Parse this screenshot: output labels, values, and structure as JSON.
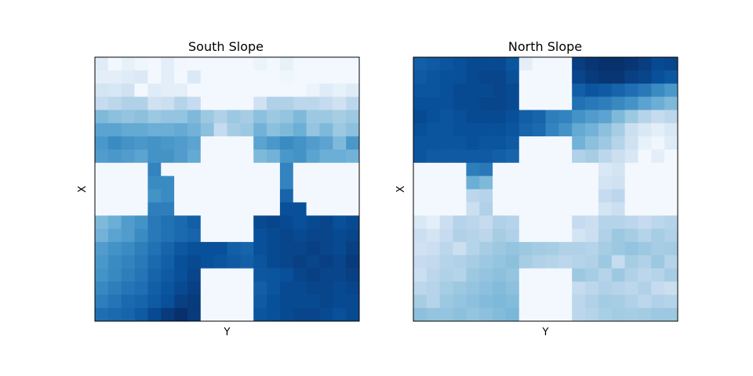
{
  "chart_data": [
    {
      "type": "heatmap",
      "title": "South Slope",
      "xlabel": "Y",
      "ylabel": "X",
      "colormap": "Blues",
      "value_range": [
        0,
        1
      ],
      "grid": false,
      "ticks": false,
      "values": [
        [
          0.12,
          0.02,
          0.08,
          0.04,
          0.02,
          0.1,
          0.03,
          0.02,
          0.02,
          0.02,
          0.02,
          0.02,
          0.06,
          0.02,
          0.08,
          0.02,
          0.02,
          0.02,
          0.02,
          0.02
        ],
        [
          0.1,
          0.1,
          0.12,
          0.14,
          0.02,
          0.1,
          0.02,
          0.14,
          0.02,
          0.02,
          0.02,
          0.02,
          0.02,
          0.02,
          0.04,
          0.02,
          0.02,
          0.02,
          0.02,
          0.02
        ],
        [
          0.18,
          0.16,
          0.2,
          0.02,
          0.12,
          0.1,
          0.1,
          0.02,
          0.02,
          0.02,
          0.02,
          0.02,
          0.02,
          0.02,
          0.02,
          0.02,
          0.06,
          0.12,
          0.08,
          0.12
        ],
        [
          0.25,
          0.28,
          0.32,
          0.32,
          0.2,
          0.22,
          0.3,
          0.25,
          0.02,
          0.02,
          0.02,
          0.02,
          0.2,
          0.32,
          0.32,
          0.28,
          0.28,
          0.25,
          0.2,
          0.28
        ],
        [
          0.45,
          0.42,
          0.4,
          0.42,
          0.38,
          0.4,
          0.4,
          0.45,
          0.38,
          0.32,
          0.38,
          0.35,
          0.42,
          0.38,
          0.4,
          0.45,
          0.38,
          0.38,
          0.35,
          0.38
        ],
        [
          0.55,
          0.55,
          0.52,
          0.52,
          0.5,
          0.5,
          0.52,
          0.48,
          0.42,
          0.25,
          0.35,
          0.38,
          0.48,
          0.42,
          0.45,
          0.5,
          0.4,
          0.45,
          0.38,
          0.42
        ],
        [
          0.6,
          0.65,
          0.62,
          0.6,
          0.62,
          0.6,
          0.58,
          0.55,
          0.02,
          0.02,
          0.02,
          0.02,
          0.55,
          0.6,
          0.65,
          0.62,
          0.58,
          0.55,
          0.45,
          0.6
        ],
        [
          0.58,
          0.6,
          0.58,
          0.55,
          0.62,
          0.62,
          0.58,
          0.52,
          0.02,
          0.02,
          0.02,
          0.02,
          0.45,
          0.48,
          0.6,
          0.62,
          0.55,
          0.5,
          0.5,
          0.48
        ],
        [
          0.02,
          0.02,
          0.02,
          0.02,
          0.68,
          0.02,
          0.02,
          0.02,
          0.02,
          0.02,
          0.02,
          0.02,
          0.02,
          0.02,
          0.68,
          0.02,
          0.02,
          0.02,
          0.02,
          0.02
        ],
        [
          0.02,
          0.02,
          0.02,
          0.02,
          0.65,
          0.65,
          0.02,
          0.02,
          0.02,
          0.02,
          0.02,
          0.02,
          0.02,
          0.02,
          0.68,
          0.02,
          0.02,
          0.02,
          0.02,
          0.02
        ],
        [
          0.02,
          0.02,
          0.02,
          0.02,
          0.62,
          0.65,
          0.02,
          0.02,
          0.02,
          0.02,
          0.02,
          0.02,
          0.02,
          0.02,
          0.8,
          0.02,
          0.02,
          0.02,
          0.02,
          0.02
        ],
        [
          0.02,
          0.02,
          0.02,
          0.02,
          0.7,
          0.7,
          0.02,
          0.02,
          0.02,
          0.02,
          0.02,
          0.02,
          0.02,
          0.02,
          0.88,
          0.88,
          0.02,
          0.02,
          0.02,
          0.02
        ],
        [
          0.45,
          0.5,
          0.58,
          0.62,
          0.72,
          0.75,
          0.78,
          0.82,
          0.02,
          0.02,
          0.02,
          0.02,
          0.9,
          0.92,
          0.9,
          0.88,
          0.9,
          0.92,
          0.88,
          0.9
        ],
        [
          0.48,
          0.55,
          0.58,
          0.65,
          0.72,
          0.75,
          0.78,
          0.8,
          0.02,
          0.02,
          0.02,
          0.02,
          0.88,
          0.9,
          0.92,
          0.9,
          0.92,
          0.92,
          0.9,
          0.92
        ],
        [
          0.58,
          0.62,
          0.65,
          0.7,
          0.75,
          0.8,
          0.85,
          0.88,
          0.88,
          0.88,
          0.82,
          0.8,
          0.88,
          0.9,
          0.92,
          0.92,
          0.94,
          0.92,
          0.9,
          0.94
        ],
        [
          0.6,
          0.65,
          0.68,
          0.72,
          0.78,
          0.82,
          0.88,
          0.9,
          0.88,
          0.86,
          0.84,
          0.82,
          0.86,
          0.9,
          0.92,
          0.94,
          0.92,
          0.94,
          0.92,
          0.96
        ],
        [
          0.62,
          0.66,
          0.7,
          0.74,
          0.8,
          0.84,
          0.88,
          0.92,
          0.02,
          0.02,
          0.02,
          0.02,
          0.85,
          0.86,
          0.88,
          0.92,
          0.94,
          0.92,
          0.92,
          0.94
        ],
        [
          0.66,
          0.7,
          0.74,
          0.76,
          0.82,
          0.86,
          0.9,
          0.94,
          0.02,
          0.02,
          0.02,
          0.02,
          0.82,
          0.86,
          0.9,
          0.9,
          0.92,
          0.92,
          0.9,
          0.92
        ],
        [
          0.7,
          0.74,
          0.78,
          0.8,
          0.84,
          0.88,
          0.94,
          0.96,
          0.02,
          0.02,
          0.02,
          0.02,
          0.84,
          0.88,
          0.9,
          0.9,
          0.9,
          0.92,
          0.9,
          0.9
        ],
        [
          0.76,
          0.78,
          0.8,
          0.84,
          0.9,
          0.96,
          1.0,
          0.96,
          0.02,
          0.02,
          0.02,
          0.02,
          0.86,
          0.88,
          0.9,
          0.92,
          0.92,
          0.9,
          0.88,
          0.9
        ]
      ]
    },
    {
      "type": "heatmap",
      "title": "North Slope",
      "xlabel": "Y",
      "ylabel": "X",
      "colormap": "Blues",
      "value_range": [
        0,
        1
      ],
      "grid": false,
      "ticks": false,
      "values": [
        [
          0.82,
          0.84,
          0.86,
          0.88,
          0.9,
          0.9,
          0.9,
          0.86,
          0.1,
          0.02,
          0.02,
          0.02,
          0.95,
          0.98,
          1.0,
          1.0,
          0.98,
          0.95,
          0.9,
          0.92
        ],
        [
          0.84,
          0.86,
          0.88,
          0.88,
          0.9,
          0.92,
          0.92,
          0.88,
          0.02,
          0.02,
          0.02,
          0.02,
          0.92,
          0.96,
          0.98,
          0.98,
          0.94,
          0.92,
          0.88,
          0.85
        ],
        [
          0.86,
          0.86,
          0.88,
          0.9,
          0.9,
          0.9,
          0.92,
          0.9,
          0.02,
          0.02,
          0.02,
          0.02,
          0.82,
          0.86,
          0.84,
          0.8,
          0.76,
          0.72,
          0.65,
          0.6
        ],
        [
          0.88,
          0.88,
          0.88,
          0.9,
          0.9,
          0.92,
          0.92,
          0.9,
          0.02,
          0.02,
          0.02,
          0.02,
          0.75,
          0.72,
          0.7,
          0.66,
          0.62,
          0.55,
          0.5,
          0.45
        ],
        [
          0.9,
          0.88,
          0.86,
          0.88,
          0.9,
          0.9,
          0.9,
          0.88,
          0.82,
          0.8,
          0.7,
          0.68,
          0.62,
          0.58,
          0.55,
          0.45,
          0.38,
          0.3,
          0.25,
          0.28
        ],
        [
          0.88,
          0.86,
          0.86,
          0.88,
          0.88,
          0.88,
          0.88,
          0.86,
          0.8,
          0.78,
          0.68,
          0.62,
          0.52,
          0.48,
          0.42,
          0.35,
          0.22,
          0.15,
          0.1,
          0.15
        ],
        [
          0.86,
          0.86,
          0.86,
          0.86,
          0.88,
          0.86,
          0.86,
          0.84,
          0.02,
          0.02,
          0.02,
          0.02,
          0.48,
          0.42,
          0.38,
          0.3,
          0.2,
          0.08,
          0.04,
          0.12
        ],
        [
          0.86,
          0.84,
          0.84,
          0.84,
          0.84,
          0.84,
          0.82,
          0.8,
          0.02,
          0.02,
          0.02,
          0.02,
          0.32,
          0.35,
          0.28,
          0.22,
          0.16,
          0.02,
          0.1,
          0.02
        ],
        [
          0.02,
          0.02,
          0.02,
          0.02,
          0.7,
          0.72,
          0.02,
          0.02,
          0.02,
          0.02,
          0.02,
          0.02,
          0.02,
          0.02,
          0.15,
          0.18,
          0.02,
          0.02,
          0.02,
          0.02
        ],
        [
          0.02,
          0.02,
          0.02,
          0.02,
          0.5,
          0.45,
          0.02,
          0.02,
          0.02,
          0.02,
          0.02,
          0.02,
          0.02,
          0.02,
          0.18,
          0.2,
          0.02,
          0.02,
          0.02,
          0.02
        ],
        [
          0.02,
          0.02,
          0.02,
          0.02,
          0.28,
          0.3,
          0.02,
          0.02,
          0.02,
          0.02,
          0.02,
          0.02,
          0.02,
          0.02,
          0.25,
          0.28,
          0.02,
          0.02,
          0.02,
          0.02
        ],
        [
          0.02,
          0.02,
          0.02,
          0.02,
          0.22,
          0.32,
          0.02,
          0.02,
          0.02,
          0.02,
          0.02,
          0.02,
          0.02,
          0.02,
          0.18,
          0.22,
          0.02,
          0.02,
          0.02,
          0.02
        ],
        [
          0.15,
          0.1,
          0.22,
          0.3,
          0.28,
          0.25,
          0.32,
          0.3,
          0.02,
          0.02,
          0.02,
          0.02,
          0.25,
          0.22,
          0.3,
          0.3,
          0.28,
          0.25,
          0.28,
          0.3
        ],
        [
          0.22,
          0.18,
          0.25,
          0.32,
          0.3,
          0.28,
          0.35,
          0.32,
          0.02,
          0.02,
          0.02,
          0.02,
          0.18,
          0.22,
          0.32,
          0.38,
          0.35,
          0.3,
          0.35,
          0.32
        ],
        [
          0.2,
          0.22,
          0.28,
          0.22,
          0.3,
          0.35,
          0.38,
          0.4,
          0.38,
          0.36,
          0.35,
          0.32,
          0.32,
          0.3,
          0.35,
          0.38,
          0.4,
          0.38,
          0.35,
          0.36
        ],
        [
          0.25,
          0.26,
          0.3,
          0.32,
          0.35,
          0.38,
          0.4,
          0.42,
          0.35,
          0.32,
          0.3,
          0.28,
          0.3,
          0.32,
          0.38,
          0.25,
          0.35,
          0.32,
          0.38,
          0.3
        ],
        [
          0.22,
          0.28,
          0.32,
          0.3,
          0.38,
          0.4,
          0.42,
          0.4,
          0.02,
          0.02,
          0.02,
          0.02,
          0.38,
          0.35,
          0.3,
          0.38,
          0.32,
          0.28,
          0.3,
          0.35
        ],
        [
          0.28,
          0.3,
          0.35,
          0.38,
          0.4,
          0.42,
          0.44,
          0.42,
          0.02,
          0.02,
          0.02,
          0.02,
          0.25,
          0.28,
          0.32,
          0.3,
          0.28,
          0.32,
          0.25,
          0.22
        ],
        [
          0.35,
          0.3,
          0.38,
          0.4,
          0.42,
          0.44,
          0.45,
          0.44,
          0.02,
          0.02,
          0.02,
          0.02,
          0.28,
          0.32,
          0.36,
          0.35,
          0.32,
          0.28,
          0.32,
          0.3
        ],
        [
          0.42,
          0.4,
          0.4,
          0.42,
          0.4,
          0.42,
          0.44,
          0.46,
          0.02,
          0.02,
          0.02,
          0.02,
          0.28,
          0.3,
          0.34,
          0.36,
          0.35,
          0.36,
          0.38,
          0.38
        ]
      ]
    }
  ]
}
